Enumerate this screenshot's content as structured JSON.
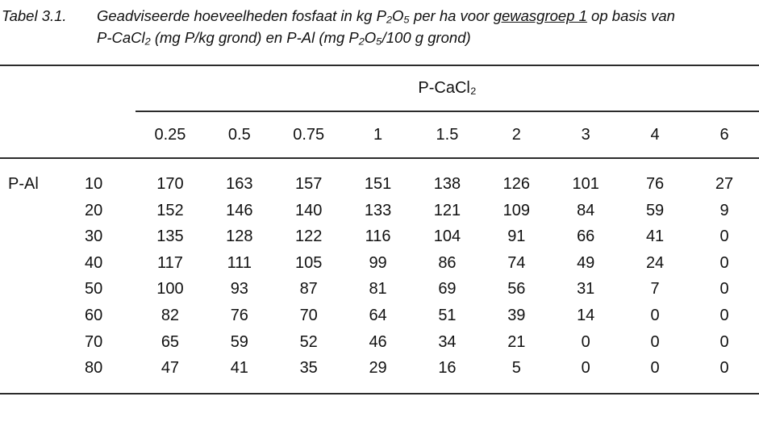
{
  "caption": {
    "label": "Tabel 3.1.",
    "line1_pre": "Geadviseerde hoeveelheden fosfaat in kg P₂O₅ per ha voor ",
    "line1_underlined": "gewasgroep 1",
    "line1_post": " op basis van",
    "line2": "P-CaCl₂ (mg P/kg grond) en P-Al (mg P₂O₅/100 g grond)"
  },
  "table": {
    "col_group_header": "P-CaCl₂",
    "row_group_header": "P-Al",
    "col_headers": [
      "0.25",
      "0.5",
      "0.75",
      "1",
      "1.5",
      "2",
      "3",
      "4",
      "6"
    ],
    "rows": [
      {
        "p_al": "10",
        "values": [
          "170",
          "163",
          "157",
          "151",
          "138",
          "126",
          "101",
          "76",
          "27"
        ]
      },
      {
        "p_al": "20",
        "values": [
          "152",
          "146",
          "140",
          "133",
          "121",
          "109",
          "84",
          "59",
          "9"
        ]
      },
      {
        "p_al": "30",
        "values": [
          "135",
          "128",
          "122",
          "116",
          "104",
          "91",
          "66",
          "41",
          "0"
        ]
      },
      {
        "p_al": "40",
        "values": [
          "117",
          "111",
          "105",
          "99",
          "86",
          "74",
          "49",
          "24",
          "0"
        ]
      },
      {
        "p_al": "50",
        "values": [
          "100",
          "93",
          "87",
          "81",
          "69",
          "56",
          "31",
          "7",
          "0"
        ]
      },
      {
        "p_al": "60",
        "values": [
          "82",
          "76",
          "70",
          "64",
          "51",
          "39",
          "14",
          "0",
          "0"
        ]
      },
      {
        "p_al": "70",
        "values": [
          "65",
          "59",
          "52",
          "46",
          "34",
          "21",
          "0",
          "0",
          "0"
        ]
      },
      {
        "p_al": "80",
        "values": [
          "47",
          "41",
          "35",
          "29",
          "16",
          "5",
          "0",
          "0",
          "0"
        ]
      }
    ]
  },
  "colors": {
    "background": "#ffffff",
    "text": "#111111",
    "rule": "#2b2b2b"
  }
}
